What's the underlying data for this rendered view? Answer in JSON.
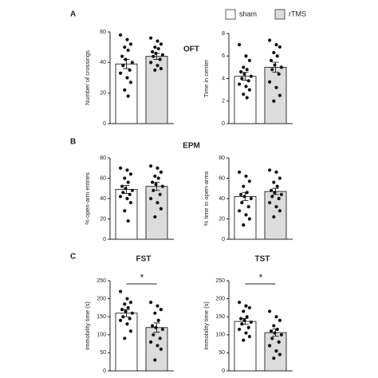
{
  "legend": [
    {
      "name": "sham",
      "color": "#ffffff"
    },
    {
      "name": "rTMS",
      "color": "#dcdcdc"
    }
  ],
  "panels": [
    {
      "letter": "A",
      "title": "OFT"
    },
    {
      "letter": "B",
      "title": "EPM"
    },
    {
      "letter": "C"
    }
  ],
  "chart_data": [
    {
      "type": "bar",
      "ylabel": "Number of crossings",
      "ylim": [
        0,
        60
      ],
      "yticks": [
        0,
        20,
        40,
        60
      ],
      "values": [
        39,
        44
      ],
      "errors": [
        3,
        2
      ],
      "points": [
        [
          58,
          55,
          52,
          50,
          48,
          44,
          42,
          40,
          38,
          35,
          33,
          30,
          27,
          22,
          18
        ],
        [
          56,
          54,
          52,
          50,
          49,
          47,
          46,
          45,
          44,
          42,
          40,
          38,
          36,
          35
        ]
      ]
    },
    {
      "type": "bar",
      "ylabel": "Time in center",
      "ylim": [
        0,
        8
      ],
      "yticks": [
        0,
        2,
        4,
        6,
        8
      ],
      "values": [
        4.2,
        5.0
      ],
      "errors": [
        0.35,
        0.45
      ],
      "points": [
        [
          7,
          6,
          5.6,
          5,
          4.8,
          4.6,
          4.4,
          4.2,
          4,
          3.8,
          3.5,
          3.3,
          3,
          2.6,
          2.3
        ],
        [
          7.4,
          7,
          6.8,
          6.3,
          6,
          5.6,
          5.2,
          5,
          4.8,
          4.4,
          3.7,
          3.2,
          2.5,
          2
        ]
      ]
    },
    {
      "type": "bar",
      "ylabel": "% open-arm entries",
      "ylim": [
        0,
        80
      ],
      "yticks": [
        0,
        20,
        40,
        60,
        80
      ],
      "values": [
        49,
        52
      ],
      "errors": [
        4,
        4
      ],
      "points": [
        [
          70,
          68,
          64,
          60,
          56,
          52,
          50,
          48,
          46,
          44,
          42,
          40,
          36,
          28,
          18
        ],
        [
          72,
          70,
          66,
          62,
          60,
          56,
          54,
          52,
          48,
          44,
          40,
          36,
          30,
          22
        ]
      ]
    },
    {
      "type": "bar",
      "ylabel": "% time in open-arms",
      "ylim": [
        0,
        80
      ],
      "yticks": [
        0,
        20,
        40,
        60,
        80
      ],
      "values": [
        42,
        47
      ],
      "errors": [
        4,
        3
      ],
      "points": [
        [
          66,
          62,
          57,
          52,
          46,
          44,
          42,
          40,
          36,
          32,
          28,
          24,
          20,
          14
        ],
        [
          68,
          66,
          60,
          56,
          52,
          48,
          46,
          44,
          42,
          40,
          36,
          32,
          28,
          22
        ]
      ]
    },
    {
      "type": "bar",
      "title": "FST",
      "annotation": "*",
      "ylabel": "Immobility time (s)",
      "ylim": [
        0,
        250
      ],
      "yticks": [
        0,
        50,
        100,
        150,
        200,
        250
      ],
      "values": [
        160,
        120
      ],
      "errors": [
        10,
        13
      ],
      "points": [
        [
          220,
          200,
          190,
          185,
          175,
          170,
          165,
          160,
          150,
          145,
          140,
          130,
          110,
          90
        ],
        [
          190,
          180,
          170,
          160,
          140,
          125,
          120,
          115,
          100,
          90,
          80,
          70,
          60,
          30
        ]
      ]
    },
    {
      "type": "bar",
      "title": "TST",
      "annotation": "*",
      "ylabel": "Immobility time (s)",
      "ylim": [
        0,
        250
      ],
      "yticks": [
        0,
        50,
        100,
        150,
        200,
        250
      ],
      "values": [
        137,
        106
      ],
      "errors": [
        8,
        10
      ],
      "points": [
        [
          190,
          180,
          175,
          165,
          150,
          145,
          140,
          135,
          130,
          120,
          115,
          105,
          95,
          85
        ],
        [
          165,
          150,
          140,
          125,
          115,
          110,
          105,
          100,
          90,
          80,
          70,
          55,
          45,
          35
        ]
      ]
    }
  ]
}
